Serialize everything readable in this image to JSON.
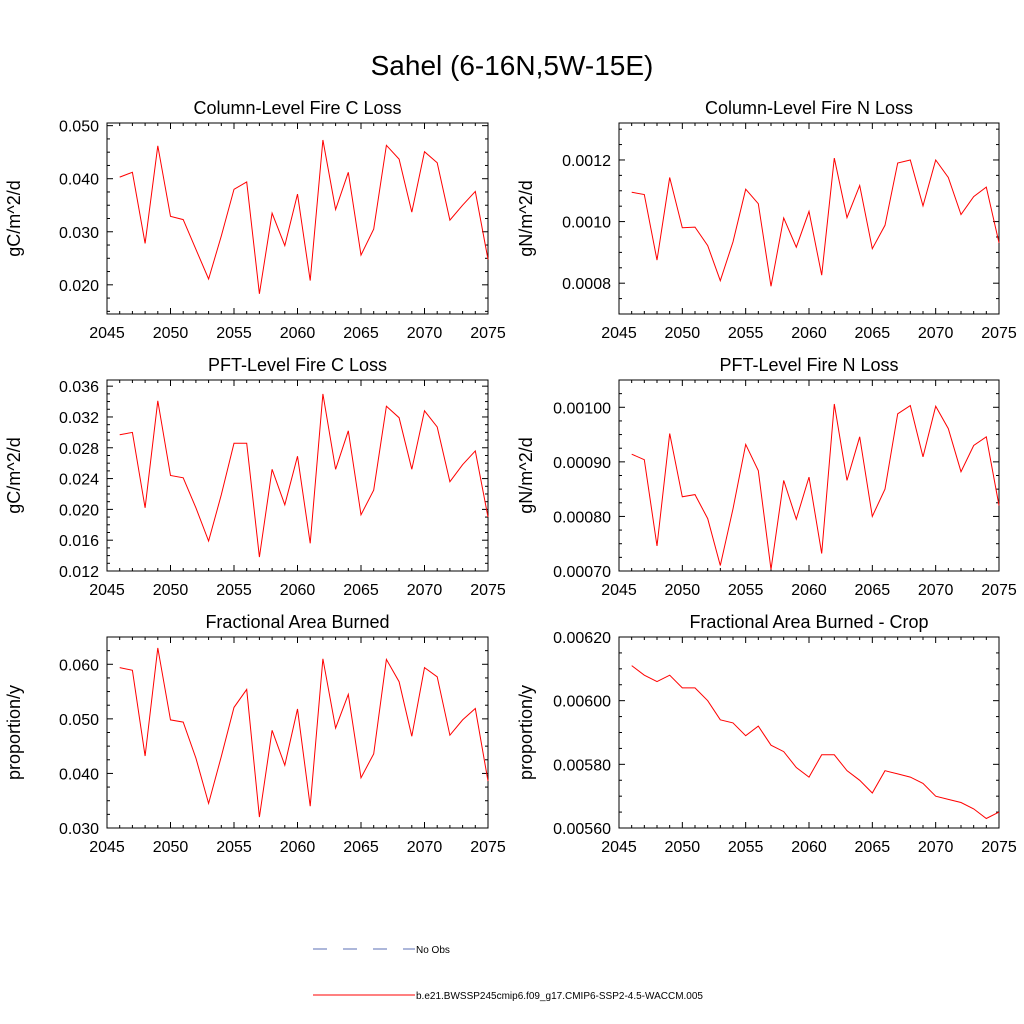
{
  "figure": {
    "title": "Sahel (6-16N,5W-15E)",
    "series_color": "#ff0000",
    "obs_color": "#5b6fb5"
  },
  "legend": {
    "obs_label": "No Obs",
    "model_label": "b.e21.BWSSP245cmip6.f09_g17.CMIP6-SSP2-4.5-WACCM.005"
  },
  "chart_data": [
    {
      "type": "line",
      "title": "Column-Level Fire C Loss",
      "ylabel": "gC/m^2/d",
      "xlim": [
        2045,
        2075
      ],
      "ylim": [
        0.0145,
        0.0505
      ],
      "xticks": [
        2045,
        2050,
        2055,
        2060,
        2065,
        2070,
        2075
      ],
      "xtick_labels": [
        "2045",
        "2050",
        "2055",
        "2060",
        "2065",
        "2070",
        "2075"
      ],
      "yticks": [
        0.02,
        0.03,
        0.04,
        0.05
      ],
      "ytick_labels": [
        "0.020",
        "0.030",
        "0.040",
        "0.050"
      ],
      "x": [
        2046,
        2047,
        2048,
        2049,
        2050,
        2051,
        2052,
        2053,
        2054,
        2055,
        2056,
        2057,
        2058,
        2059,
        2060,
        2061,
        2062,
        2063,
        2064,
        2065,
        2066,
        2067,
        2068,
        2069,
        2070,
        2071,
        2072,
        2073,
        2074,
        2075
      ],
      "values": [
        0.0403,
        0.0412,
        0.0278,
        0.0462,
        0.0329,
        0.0323,
        0.0267,
        0.0211,
        0.0292,
        0.038,
        0.0394,
        0.0183,
        0.0335,
        0.0274,
        0.0371,
        0.0208,
        0.0473,
        0.0342,
        0.0412,
        0.0256,
        0.0305,
        0.0463,
        0.0437,
        0.0337,
        0.0451,
        0.043,
        0.0322,
        0.035,
        0.0376,
        0.0248
      ]
    },
    {
      "type": "line",
      "title": "Column-Level Fire N Loss",
      "ylabel": "gN/m^2/d",
      "xlim": [
        2045,
        2075
      ],
      "ylim": [
        0.0007,
        0.00132
      ],
      "xticks": [
        2045,
        2050,
        2055,
        2060,
        2065,
        2070,
        2075
      ],
      "xtick_labels": [
        "2045",
        "2050",
        "2055",
        "2060",
        "2065",
        "2070",
        "2075"
      ],
      "yticks": [
        0.0008,
        0.001,
        0.0012
      ],
      "ytick_labels": [
        "0.0008",
        "0.0010",
        "0.0012"
      ],
      "x": [
        2046,
        2047,
        2048,
        2049,
        2050,
        2051,
        2052,
        2053,
        2054,
        2055,
        2056,
        2057,
        2058,
        2059,
        2060,
        2061,
        2062,
        2063,
        2064,
        2065,
        2066,
        2067,
        2068,
        2069,
        2070,
        2071,
        2072,
        2073,
        2074,
        2075
      ],
      "values": [
        0.001095,
        0.001088,
        0.000875,
        0.001143,
        0.00098,
        0.000982,
        0.000922,
        0.000808,
        0.000934,
        0.001105,
        0.001058,
        0.00079,
        0.001012,
        0.000917,
        0.001033,
        0.000826,
        0.001206,
        0.001013,
        0.001117,
        0.000912,
        0.000988,
        0.00119,
        0.0012,
        0.001051,
        0.0012,
        0.001143,
        0.001023,
        0.001081,
        0.001112,
        0.000931
      ]
    },
    {
      "type": "line",
      "title": "PFT-Level Fire C Loss",
      "ylabel": "gC/m^2/d",
      "xlim": [
        2045,
        2075
      ],
      "ylim": [
        0.012,
        0.0368
      ],
      "xticks": [
        2045,
        2050,
        2055,
        2060,
        2065,
        2070,
        2075
      ],
      "xtick_labels": [
        "2045",
        "2050",
        "2055",
        "2060",
        "2065",
        "2070",
        "2075"
      ],
      "yticks": [
        0.012,
        0.016,
        0.02,
        0.024,
        0.028,
        0.032,
        0.036
      ],
      "ytick_labels": [
        "0.012",
        "0.016",
        "0.020",
        "0.024",
        "0.028",
        "0.032",
        "0.036"
      ],
      "x": [
        2046,
        2047,
        2048,
        2049,
        2050,
        2051,
        2052,
        2053,
        2054,
        2055,
        2056,
        2057,
        2058,
        2059,
        2060,
        2061,
        2062,
        2063,
        2064,
        2065,
        2066,
        2067,
        2068,
        2069,
        2070,
        2071,
        2072,
        2073,
        2074,
        2075
      ],
      "values": [
        0.0297,
        0.03,
        0.0202,
        0.0341,
        0.0244,
        0.0241,
        0.0202,
        0.0159,
        0.0219,
        0.0286,
        0.0286,
        0.0138,
        0.0252,
        0.0206,
        0.0269,
        0.0156,
        0.035,
        0.0252,
        0.0302,
        0.0193,
        0.0225,
        0.0334,
        0.0319,
        0.0252,
        0.0328,
        0.0307,
        0.0236,
        0.0258,
        0.0276,
        0.019
      ]
    },
    {
      "type": "line",
      "title": "PFT-Level Fire N Loss",
      "ylabel": "gN/m^2/d",
      "xlim": [
        2045,
        2075
      ],
      "ylim": [
        0.0007,
        0.00105
      ],
      "xticks": [
        2045,
        2050,
        2055,
        2060,
        2065,
        2070,
        2075
      ],
      "xtick_labels": [
        "2045",
        "2050",
        "2055",
        "2060",
        "2065",
        "2070",
        "2075"
      ],
      "yticks": [
        0.0007,
        0.0008,
        0.0009,
        0.001
      ],
      "ytick_labels": [
        "0.00070",
        "0.00080",
        "0.00090",
        "0.00100"
      ],
      "x": [
        2046,
        2047,
        2048,
        2049,
        2050,
        2051,
        2052,
        2053,
        2054,
        2055,
        2056,
        2057,
        2058,
        2059,
        2060,
        2061,
        2062,
        2063,
        2064,
        2065,
        2066,
        2067,
        2068,
        2069,
        2070,
        2071,
        2072,
        2073,
        2074,
        2075
      ],
      "values": [
        0.000914,
        0.000904,
        0.000746,
        0.000952,
        0.000836,
        0.00084,
        0.000796,
        0.00071,
        0.000814,
        0.000932,
        0.000884,
        0.000703,
        0.000866,
        0.000795,
        0.000872,
        0.000732,
        0.001006,
        0.000866,
        0.000946,
        0.0008,
        0.00085,
        0.000988,
        0.001003,
        0.000909,
        0.001002,
        0.000961,
        0.000882,
        0.00093,
        0.000946,
        0.00082
      ]
    },
    {
      "type": "line",
      "title": "Fractional Area Burned",
      "ylabel": "proportion/y",
      "xlim": [
        2045,
        2075
      ],
      "ylim": [
        0.03,
        0.065
      ],
      "xticks": [
        2045,
        2050,
        2055,
        2060,
        2065,
        2070,
        2075
      ],
      "xtick_labels": [
        "2045",
        "2050",
        "2055",
        "2060",
        "2065",
        "2070",
        "2075"
      ],
      "yticks": [
        0.03,
        0.04,
        0.05,
        0.06
      ],
      "ytick_labels": [
        "0.030",
        "0.040",
        "0.050",
        "0.060"
      ],
      "x": [
        2046,
        2047,
        2048,
        2049,
        2050,
        2051,
        2052,
        2053,
        2054,
        2055,
        2056,
        2057,
        2058,
        2059,
        2060,
        2061,
        2062,
        2063,
        2064,
        2065,
        2066,
        2067,
        2068,
        2069,
        2070,
        2071,
        2072,
        2073,
        2074,
        2075
      ],
      "values": [
        0.0594,
        0.0589,
        0.0432,
        0.063,
        0.0498,
        0.0494,
        0.0428,
        0.0345,
        0.0431,
        0.0521,
        0.0554,
        0.032,
        0.0479,
        0.0415,
        0.0518,
        0.034,
        0.061,
        0.0483,
        0.0545,
        0.0392,
        0.0436,
        0.0609,
        0.0568,
        0.0468,
        0.0594,
        0.0577,
        0.047,
        0.0498,
        0.0519,
        0.0386
      ]
    },
    {
      "type": "line",
      "title": "Fractional Area Burned - Crop",
      "ylabel": "proportion/y",
      "xlim": [
        2045,
        2075
      ],
      "ylim": [
        0.0056,
        0.0062
      ],
      "xticks": [
        2045,
        2050,
        2055,
        2060,
        2065,
        2070,
        2075
      ],
      "xtick_labels": [
        "2045",
        "2050",
        "2055",
        "2060",
        "2065",
        "2070",
        "2075"
      ],
      "yticks": [
        0.0056,
        0.0058,
        0.006,
        0.0062
      ],
      "ytick_labels": [
        "0.00560",
        "0.00580",
        "0.00600",
        "0.00620"
      ],
      "x": [
        2046,
        2047,
        2048,
        2049,
        2050,
        2051,
        2052,
        2053,
        2054,
        2055,
        2056,
        2057,
        2058,
        2059,
        2060,
        2061,
        2062,
        2063,
        2064,
        2065,
        2066,
        2067,
        2068,
        2069,
        2070,
        2071,
        2072,
        2073,
        2074,
        2075
      ],
      "values": [
        0.00611,
        0.00608,
        0.00606,
        0.00608,
        0.00604,
        0.00604,
        0.006,
        0.00594,
        0.00593,
        0.00589,
        0.00592,
        0.00586,
        0.00584,
        0.00579,
        0.00576,
        0.00583,
        0.00583,
        0.00578,
        0.00575,
        0.00571,
        0.00578,
        0.00577,
        0.00576,
        0.00574,
        0.0057,
        0.00569,
        0.00568,
        0.00566,
        0.00563,
        0.00565
      ]
    }
  ]
}
